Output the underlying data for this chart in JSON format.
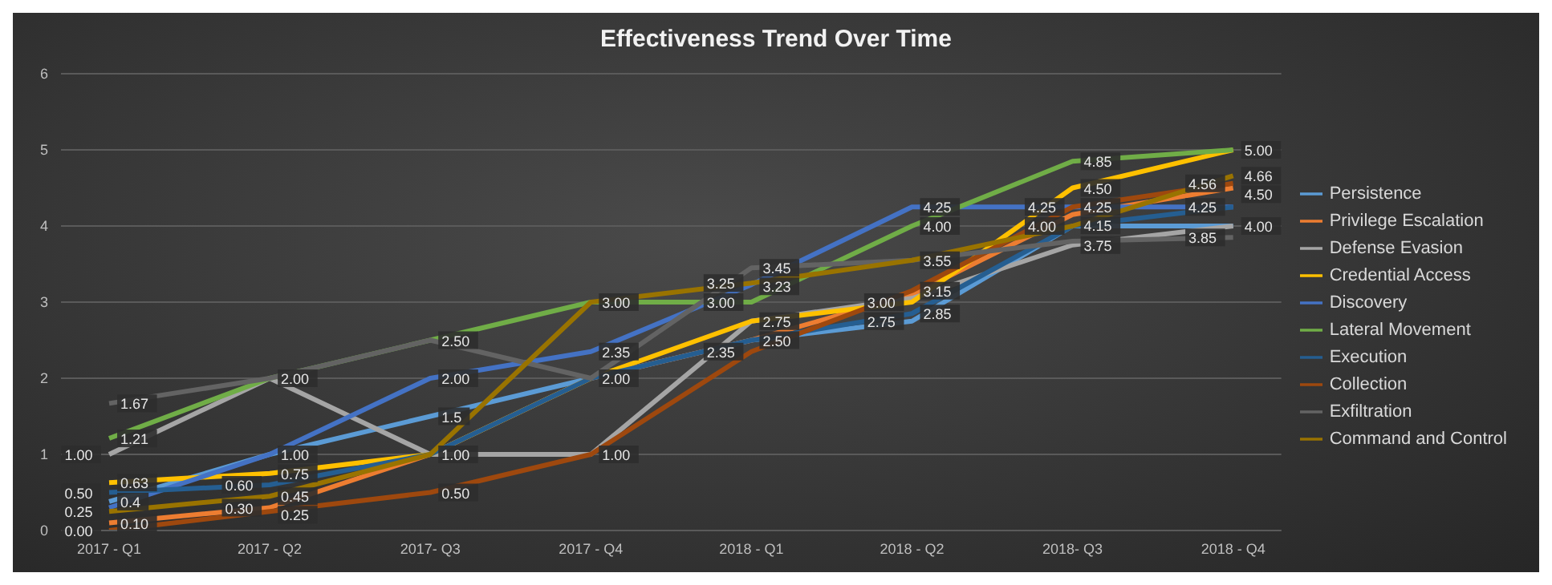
{
  "chart_data": {
    "type": "line",
    "title": "Effectiveness Trend Over Time",
    "categories": [
      "2017 - Q1",
      "2017 - Q2",
      "2017- Q3",
      "2017 - Q4",
      "2018 - Q1",
      "2018 - Q2",
      "2018- Q3",
      "2018 - Q4"
    ],
    "ylim": [
      0,
      6
    ],
    "yticks": [
      0,
      1,
      2,
      3,
      4,
      5,
      6
    ],
    "grid": "y",
    "legend": "right",
    "marker": "none",
    "line_style": "solid",
    "series": [
      {
        "name": "Persistence",
        "color": "#5b9bd5",
        "values": [
          0.38,
          1.0,
          1.5,
          2.0,
          2.5,
          2.75,
          4.0,
          4.0
        ],
        "value_labels": [
          "0.4",
          "1.00",
          "1.5",
          "2.00",
          "2.50",
          "2.75",
          "4.00",
          "4.00"
        ]
      },
      {
        "name": "Privilege Escalation",
        "color": "#ed7d31",
        "values": [
          0.1,
          0.3,
          1.0,
          2.0,
          2.5,
          3.1,
          4.15,
          4.5
        ],
        "value_labels": [
          "0.10",
          "0.30",
          null,
          null,
          null,
          null,
          "4.15",
          "4.50"
        ]
      },
      {
        "name": "Defense Evasion",
        "color": "#a5a5a5",
        "values": [
          1.0,
          2.0,
          1.0,
          1.0,
          2.75,
          3.05,
          3.75,
          4.0
        ],
        "value_labels": [
          "1.00",
          "2.00",
          "1.00",
          "1.00",
          null,
          null,
          "3.75",
          null
        ]
      },
      {
        "name": "Credential Access",
        "color": "#ffc000",
        "values": [
          0.63,
          0.75,
          1.0,
          2.0,
          2.75,
          3.0,
          4.5,
          5.0
        ],
        "value_labels": [
          "0.63",
          "0.75",
          null,
          null,
          "2.75",
          "3.00",
          "4.50",
          "5.00"
        ]
      },
      {
        "name": "Discovery",
        "color": "#4472c4",
        "values": [
          0.3,
          1.0,
          2.0,
          2.35,
          3.23,
          4.25,
          4.25,
          4.25
        ],
        "value_labels": [
          null,
          null,
          "2.00",
          "2.35",
          "3.23",
          "4.25",
          "4.25",
          null
        ]
      },
      {
        "name": "Lateral Movement",
        "color": "#70ad47",
        "values": [
          1.21,
          2.0,
          2.5,
          3.0,
          3.0,
          4.0,
          4.85,
          5.0
        ],
        "value_labels": [
          "1.21",
          null,
          null,
          null,
          "3.00",
          "4.00",
          "4.85",
          null
        ]
      },
      {
        "name": "Execution",
        "color": "#255e91",
        "values": [
          0.5,
          0.6,
          1.0,
          2.0,
          2.5,
          2.85,
          4.0,
          4.25
        ],
        "value_labels": [
          "0.50",
          "0.60",
          null,
          null,
          null,
          "2.85",
          null,
          "4.25"
        ]
      },
      {
        "name": "Collection",
        "color": "#9e480e",
        "values": [
          0.0,
          0.25,
          0.5,
          1.0,
          2.35,
          3.15,
          4.25,
          4.56
        ],
        "value_labels": [
          "0.00",
          "0.25",
          "0.50",
          null,
          "2.35",
          "3.15",
          "4.25",
          "4.56"
        ]
      },
      {
        "name": "Exfiltration",
        "color": "#636363",
        "values": [
          1.67,
          2.0,
          2.5,
          2.0,
          3.45,
          3.55,
          3.8,
          3.85
        ],
        "value_labels": [
          "1.67",
          null,
          "2.50",
          null,
          "3.45",
          null,
          null,
          "3.85"
        ]
      },
      {
        "name": "Command and Control",
        "color": "#997300",
        "values": [
          0.25,
          0.45,
          1.0,
          3.0,
          3.25,
          3.55,
          4.0,
          4.66
        ],
        "value_labels": [
          "0.25",
          "0.45",
          null,
          "3.00",
          "3.25",
          "3.55",
          null,
          "4.66"
        ]
      }
    ]
  }
}
